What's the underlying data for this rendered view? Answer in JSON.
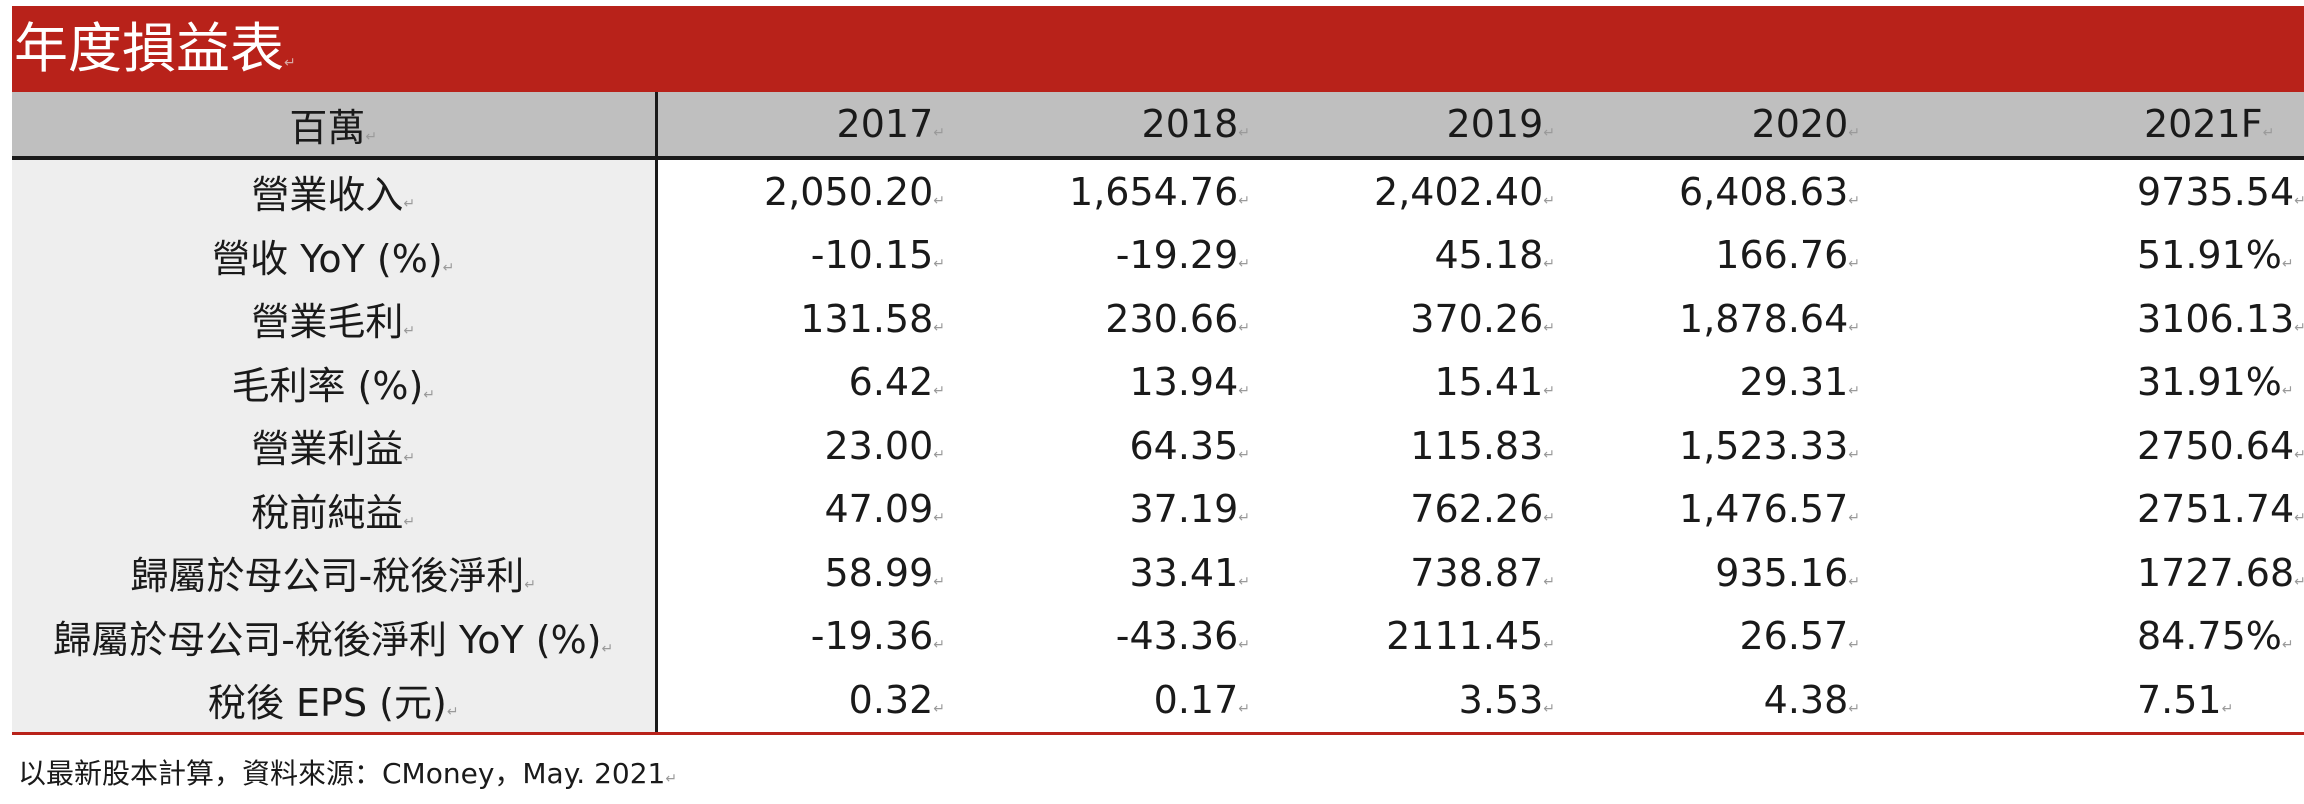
{
  "title": "年度損益表",
  "columns": {
    "label_header": "百萬",
    "years": [
      "2017",
      "2018",
      "2019",
      "2020",
      "2021F"
    ]
  },
  "rows": [
    {
      "label": "營業收入",
      "values": [
        "2,050.20",
        "1,654.76",
        "2,402.40",
        "6,408.63",
        "9735.54"
      ]
    },
    {
      "label": "營收 YoY (%)",
      "values": [
        "-10.15",
        "-19.29",
        "45.18",
        "166.76",
        "51.91%"
      ]
    },
    {
      "label": "營業毛利",
      "values": [
        "131.58",
        "230.66",
        "370.26",
        "1,878.64",
        "3106.13"
      ]
    },
    {
      "label": "毛利率 (%)",
      "values": [
        "6.42",
        "13.94",
        "15.41",
        "29.31",
        "31.91%"
      ]
    },
    {
      "label": "營業利益",
      "values": [
        "23.00",
        "64.35",
        "115.83",
        "1,523.33",
        "2750.64"
      ]
    },
    {
      "label": "稅前純益",
      "values": [
        "47.09",
        "37.19",
        "762.26",
        "1,476.57",
        "2751.74"
      ]
    },
    {
      "label": "歸屬於母公司-稅後淨利",
      "values": [
        "58.99",
        "33.41",
        "738.87",
        "935.16",
        "1727.68"
      ]
    },
    {
      "label": "歸屬於母公司-稅後淨利 YoY (%)",
      "values": [
        "-19.36",
        "-43.36",
        "2111.45",
        "26.57",
        "84.75%"
      ]
    },
    {
      "label": "稅後 EPS (元)",
      "values": [
        "0.32",
        "0.17",
        "3.53",
        "4.38",
        "7.51"
      ]
    }
  ],
  "footnote": "以最新股本計算，資料來源：CMoney，May. 2021",
  "colors": {
    "title_bar": "#b8221a",
    "header_bg": "#bfbfbf",
    "label_bg": "#eeeeee",
    "rule": "#1a1a1a"
  }
}
